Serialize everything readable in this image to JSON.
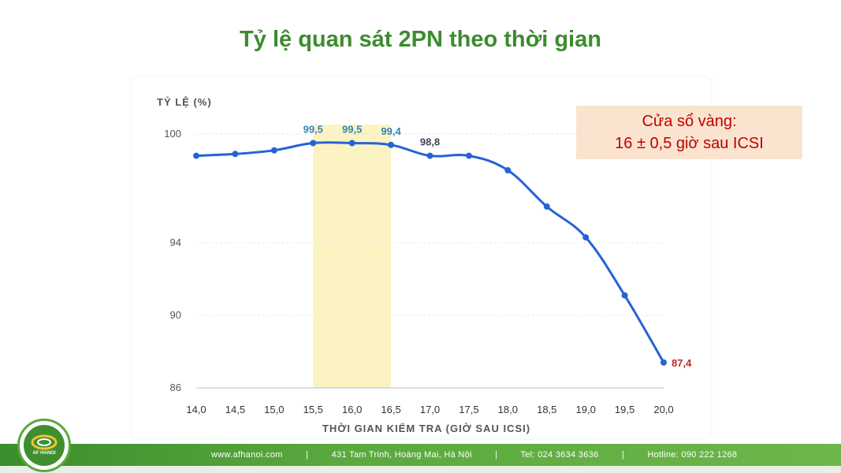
{
  "title": "Tỷ lệ quan sát 2PN theo thời gian",
  "callout": {
    "line1": "Cửa sổ vàng:",
    "line2": "16 ± 0,5 giờ sau ICSI"
  },
  "footer": {
    "website": "www.afhanoi.com",
    "address": "431 Tam Trinh, Hoàng Mai, Hà Nội",
    "tel": "Tel: 024 3634 3636",
    "hotline": "Hotline: 090 222 1268",
    "separator": "|"
  },
  "logo": {
    "text": "AF HANOI"
  },
  "colors": {
    "title": "#3d8b2f",
    "line": "#2563d6",
    "highlight_band": "#fbf3c2",
    "label_blue": "#2f86b8",
    "label_dark": "#3a4656",
    "label_red": "#c0272d",
    "axis_text": "#555555"
  },
  "chart_data": {
    "type": "line",
    "ylabel": "TỶ LỆ (%)",
    "xlabel": "THỜI GIAN KIỂM TRA (GIỜ SAU ICSI)",
    "x": [
      14.0,
      14.5,
      15.0,
      15.5,
      16.0,
      16.5,
      17.0,
      17.5,
      18.0,
      18.5,
      19.0,
      19.5,
      20.0
    ],
    "x_tick_labels": [
      "14,0",
      "14,5",
      "15,0",
      "15,5",
      "16,0",
      "16,5",
      "17,0",
      "17,5",
      "18,0",
      "18,5",
      "19,0",
      "19,5",
      "20,0"
    ],
    "y_ticks": [
      100,
      94,
      90,
      86
    ],
    "y_tick_labels": [
      "100",
      "94",
      "90",
      "86"
    ],
    "grid": true,
    "series": [
      {
        "values": [
          98.8,
          98.9,
          99.1,
          99.5,
          99.5,
          99.4,
          98.8,
          98.8,
          98.0,
          96.0,
          94.3,
          91.1,
          87.4
        ]
      }
    ],
    "highlight_range": [
      15.5,
      16.5
    ],
    "data_labels": [
      {
        "index": 3,
        "text": "99,5",
        "color": "#2f86b8"
      },
      {
        "index": 4,
        "text": "99,5",
        "color": "#2f86b8"
      },
      {
        "index": 5,
        "text": "99,4",
        "color": "#2f86b8"
      },
      {
        "index": 6,
        "text": "98,8",
        "color": "#3a4656"
      },
      {
        "index": 12,
        "text": "87,4",
        "color": "#c0272d"
      }
    ]
  }
}
